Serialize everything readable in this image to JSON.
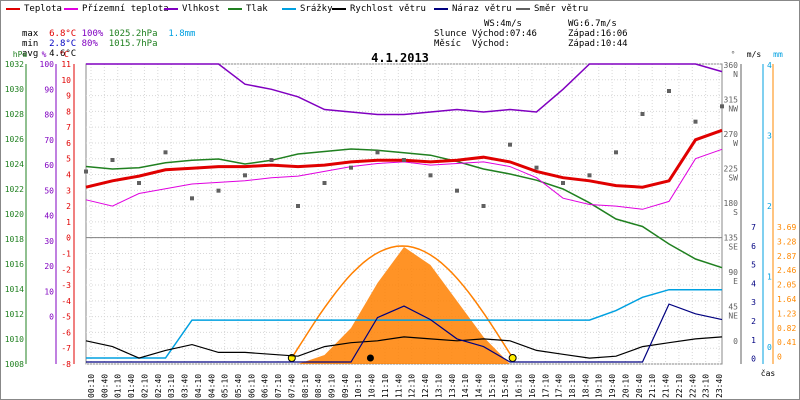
{
  "chart_data": {
    "type": "line",
    "title": "4.1.2013",
    "legend": [
      {
        "label": "Teplota",
        "color": "#e00000"
      },
      {
        "label": "Přízemní teplota",
        "color": "#e000e0"
      },
      {
        "label": "Vlhkost",
        "color": "#8000c0"
      },
      {
        "label": "Tlak",
        "color": "#208020"
      },
      {
        "label": "Srážky",
        "color": "#00a0e0"
      },
      {
        "label": "Rychlost větru",
        "color": "#000000"
      },
      {
        "label": "Náraz větru",
        "color": "#000080"
      },
      {
        "label": "Směr větru",
        "color": "#606060"
      }
    ],
    "stats": {
      "max_label": "max",
      "max_temp": "6.8°C",
      "max_hum": "100%",
      "max_press": "1025.2hPa",
      "max_rain": "1.8mm",
      "min_label": "min",
      "min_temp": "2.8°C",
      "min_hum": "80%",
      "min_press": "1015.7hPa",
      "avg_label": "avg",
      "avg_temp": "4.6°C"
    },
    "info": {
      "ws": "WS:4m/s",
      "wg": "WG:6.7m/s",
      "sun_label": "Slunce",
      "sun_rise": "Východ:07:46",
      "sun_set": "Západ:16:06",
      "moon_label": "Měsíc",
      "moon_rise": "Východ:",
      "moon_set": "Západ:10:44"
    },
    "axes": {
      "hpa_label": "hPa",
      "pct_label": "%",
      "c_label": "°C",
      "deg_label": "°",
      "ms_label": "m/s",
      "mm_label": "mm",
      "time_label": "čas",
      "hpa_ticks": [
        "1032",
        "1030",
        "1028",
        "1026",
        "1024",
        "1022",
        "1020",
        "1018",
        "1016",
        "1014",
        "1012",
        "1010",
        "1008"
      ],
      "pct_ticks": [
        "100",
        "90",
        "80",
        "70",
        "60",
        "50",
        "40",
        "30",
        "20",
        "10",
        "0"
      ],
      "c_ticks": [
        "11",
        "10",
        "9",
        "8",
        "7",
        "6",
        "5",
        "4",
        "3",
        "2",
        "1",
        "0",
        "-1",
        "-2",
        "-3",
        "-4",
        "-5",
        "-6",
        "-7",
        "-8"
      ],
      "dir_ticks": [
        "360",
        "N",
        "315",
        "NW",
        "270",
        "W",
        "225",
        "SW",
        "180",
        "S",
        "135",
        "SE",
        "90",
        "E",
        "45",
        "NE",
        "0"
      ],
      "ms_ticks": [
        "4",
        "3",
        "2",
        "1",
        "0"
      ],
      "ms2_ticks": [
        "7",
        "6",
        "5",
        "4",
        "3",
        "2",
        "1",
        "0"
      ],
      "mm_ticks": [
        "3.69",
        "3.28",
        "2.87",
        "2.46",
        "2.05",
        "1.64",
        "1.23",
        "0.82",
        "0.41",
        "0"
      ],
      "time_ticks": [
        "00:10",
        "00:40",
        "01:10",
        "01:40",
        "02:10",
        "02:40",
        "03:10",
        "03:40",
        "04:10",
        "04:40",
        "05:10",
        "05:40",
        "06:10",
        "06:40",
        "07:10",
        "07:40",
        "08:10",
        "08:40",
        "09:10",
        "09:40",
        "10:10",
        "10:40",
        "11:10",
        "11:40",
        "12:10",
        "12:40",
        "13:10",
        "13:40",
        "14:10",
        "14:40",
        "15:10",
        "15:40",
        "16:10",
        "16:40",
        "17:10",
        "17:40",
        "18:10",
        "18:40",
        "19:10",
        "19:40",
        "20:10",
        "20:40",
        "21:10",
        "21:40",
        "22:10",
        "22:40",
        "23:10",
        "23:40"
      ]
    },
    "x_hours": [
      0,
      1,
      2,
      3,
      4,
      5,
      6,
      7,
      8,
      9,
      10,
      11,
      12,
      13,
      14,
      15,
      16,
      17,
      18,
      19,
      20,
      21,
      22,
      23,
      24
    ],
    "temperature_c": [
      3.2,
      3.6,
      3.9,
      4.3,
      4.4,
      4.5,
      4.5,
      4.6,
      4.5,
      4.6,
      4.8,
      4.9,
      4.9,
      4.8,
      4.9,
      5.1,
      4.8,
      4.2,
      3.8,
      3.6,
      3.3,
      3.2,
      3.6,
      6.2,
      6.8
    ],
    "ground_temp_c": [
      2.4,
      2.0,
      2.8,
      3.1,
      3.4,
      3.5,
      3.6,
      3.8,
      3.9,
      4.2,
      4.5,
      4.7,
      4.8,
      4.6,
      4.7,
      4.8,
      4.5,
      3.8,
      2.5,
      2.1,
      2.0,
      1.8,
      2.3,
      5.0,
      5.6
    ],
    "humidity_pct": [
      100,
      100,
      100,
      100,
      100,
      100,
      92,
      90,
      87,
      82,
      81,
      80,
      80,
      81,
      82,
      81,
      82,
      81,
      90,
      100,
      100,
      100,
      100,
      100,
      97
    ],
    "pressure_hpa": [
      1023.8,
      1023.6,
      1023.7,
      1024.1,
      1024.3,
      1024.4,
      1024.0,
      1024.3,
      1024.8,
      1025.0,
      1025.2,
      1025.1,
      1024.9,
      1024.7,
      1024.2,
      1023.6,
      1023.2,
      1022.7,
      1022.0,
      1020.9,
      1019.6,
      1019.0,
      1017.6,
      1016.4,
      1015.7
    ],
    "rain_mm": [
      0,
      0,
      0,
      0,
      1.0,
      1.0,
      1.0,
      1.0,
      1.0,
      1.0,
      1.0,
      1.0,
      1.0,
      1.0,
      1.0,
      1.0,
      1.0,
      1.0,
      1.0,
      1.0,
      1.25,
      1.6,
      1.8,
      1.8,
      1.8
    ],
    "wind_speed_ms": [
      1.1,
      0.8,
      0.2,
      0.6,
      0.9,
      0.5,
      0.5,
      0.4,
      0.3,
      0.8,
      1.0,
      1.1,
      1.3,
      1.2,
      1.1,
      1.2,
      1.1,
      0.6,
      0.4,
      0.2,
      0.3,
      0.8,
      1.0,
      1.2,
      1.3
    ],
    "wind_gust_ms": [
      0,
      0,
      0,
      0,
      0,
      0,
      0,
      0,
      0,
      0,
      0,
      2.3,
      2.9,
      2.2,
      1.2,
      0.8,
      0,
      0,
      0,
      0,
      0,
      0,
      3.0,
      2.5,
      2.2
    ],
    "solar_mm_scale": [
      0,
      0,
      0,
      0,
      0,
      0,
      0,
      0,
      0,
      0.1,
      0.4,
      0.9,
      1.3,
      1.1,
      0.7,
      0.3,
      0,
      0,
      0,
      0,
      0,
      0,
      0,
      0,
      0
    ],
    "wind_dir_deg": [
      225,
      240,
      210,
      250,
      190,
      200,
      220,
      240,
      180,
      210,
      230,
      250,
      240,
      220,
      200,
      180,
      260,
      230,
      210,
      220,
      250,
      300,
      330,
      290,
      310
    ]
  }
}
